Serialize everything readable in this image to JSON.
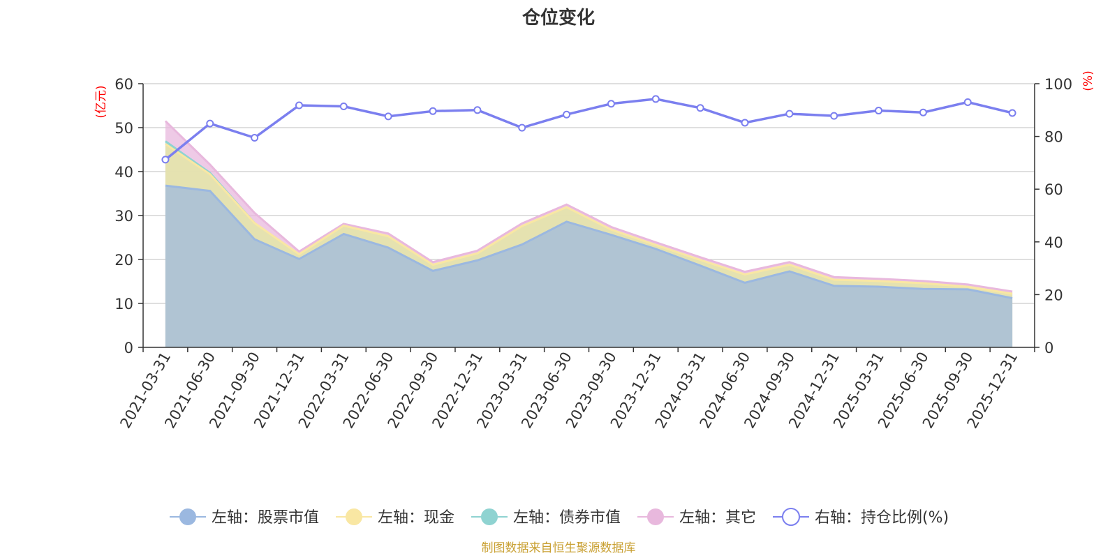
{
  "chart_data": {
    "type": "area",
    "title": "仓位变化",
    "left_axis_unit": "(亿元)",
    "right_axis_unit": "(%)",
    "left_ylim": [
      0,
      60
    ],
    "left_ticks": [
      0,
      10,
      20,
      30,
      40,
      50,
      60
    ],
    "right_ylim": [
      0,
      100
    ],
    "right_ticks": [
      0,
      20,
      40,
      60,
      80,
      100
    ],
    "categories": [
      "2021-03-31",
      "2021-06-30",
      "2021-09-30",
      "2021-12-31",
      "2022-03-31",
      "2022-06-30",
      "2022-09-30",
      "2022-12-31",
      "2023-03-31",
      "2023-06-30",
      "2023-09-30",
      "2023-12-31",
      "2024-03-31",
      "2024-06-30",
      "2024-09-30",
      "2024-12-31",
      "2025-03-31",
      "2025-06-30",
      "2025-09-30",
      "2025-12-31"
    ],
    "stacked_series": [
      {
        "name": "左轴：股票市值",
        "axis": "left",
        "color": "#9bb8e0",
        "values": [
          36.8,
          35.6,
          24.6,
          20.1,
          25.8,
          22.7,
          17.4,
          19.8,
          23.4,
          28.6,
          25.6,
          22.4,
          18.6,
          14.7,
          17.3,
          14.0,
          13.8,
          13.3,
          13.2,
          11.2
        ]
      },
      {
        "name": "左轴：现金",
        "axis": "left",
        "color": "#f9e7a3",
        "values": [
          9.5,
          3.8,
          3.7,
          1.1,
          1.9,
          2.6,
          1.4,
          1.6,
          4.2,
          3.3,
          1.2,
          0.9,
          1.3,
          1.9,
          1.5,
          1.4,
          1.3,
          1.3,
          0.6,
          1.0
        ]
      },
      {
        "name": "左轴：债券市值",
        "axis": "left",
        "color": "#8fd3d1",
        "values": [
          0.6,
          0.3,
          0,
          0,
          0,
          0,
          0,
          0,
          0,
          0,
          0,
          0,
          0,
          0,
          0,
          0,
          0,
          0,
          0,
          0
        ]
      },
      {
        "name": "左轴：其它",
        "axis": "left",
        "color": "#e8b8dd",
        "values": [
          4.6,
          1.9,
          2.3,
          0.6,
          0.4,
          0.6,
          0.6,
          0.6,
          0.6,
          0.6,
          0.6,
          0.6,
          0.6,
          0.6,
          0.6,
          0.6,
          0.5,
          0.5,
          0.5,
          0.5
        ]
      }
    ],
    "line_series": {
      "name": "右轴：持仓比例(%)",
      "axis": "right",
      "color": "#7b7fef",
      "values": [
        71.2,
        84.9,
        79.5,
        91.8,
        91.4,
        87.6,
        89.6,
        90.0,
        83.3,
        88.3,
        92.4,
        94.2,
        90.8,
        85.2,
        88.6,
        87.8,
        89.8,
        89.1,
        93.0,
        88.9
      ]
    },
    "legend_position": "bottom",
    "grid": true
  },
  "source_note": "制图数据来自恒生聚源数据库",
  "source_color": "#c9a032"
}
